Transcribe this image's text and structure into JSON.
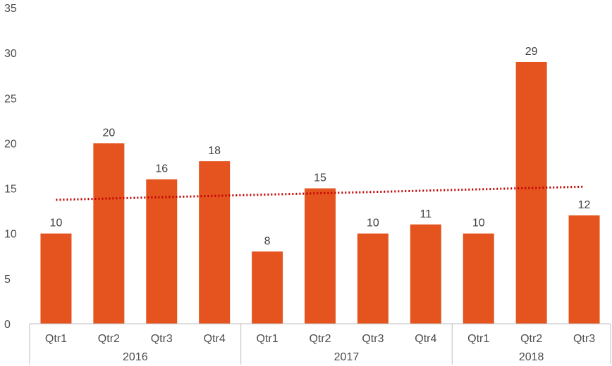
{
  "chart_data": {
    "type": "bar",
    "title": "",
    "xlabel": "",
    "ylabel": "",
    "ylim": [
      0,
      35
    ],
    "yticks": [
      0,
      5,
      10,
      15,
      20,
      25,
      30,
      35
    ],
    "categories": [
      {
        "year": "2016",
        "quarter": "Qtr1"
      },
      {
        "year": "2016",
        "quarter": "Qtr2"
      },
      {
        "year": "2016",
        "quarter": "Qtr3"
      },
      {
        "year": "2016",
        "quarter": "Qtr4"
      },
      {
        "year": "2017",
        "quarter": "Qtr1"
      },
      {
        "year": "2017",
        "quarter": "Qtr2"
      },
      {
        "year": "2017",
        "quarter": "Qtr3"
      },
      {
        "year": "2017",
        "quarter": "Qtr4"
      },
      {
        "year": "2018",
        "quarter": "Qtr1"
      },
      {
        "year": "2018",
        "quarter": "Qtr2"
      },
      {
        "year": "2018",
        "quarter": "Qtr3"
      }
    ],
    "groups": [
      "2016",
      "2017",
      "2018"
    ],
    "values": [
      10,
      20,
      16,
      18,
      8,
      15,
      10,
      11,
      10,
      29,
      12
    ],
    "data_labels": true,
    "trendline": {
      "type": "linear",
      "style": "dotted",
      "color": "#c00000"
    },
    "bar_color": "#e5541f",
    "grid": false,
    "legend": "none"
  }
}
